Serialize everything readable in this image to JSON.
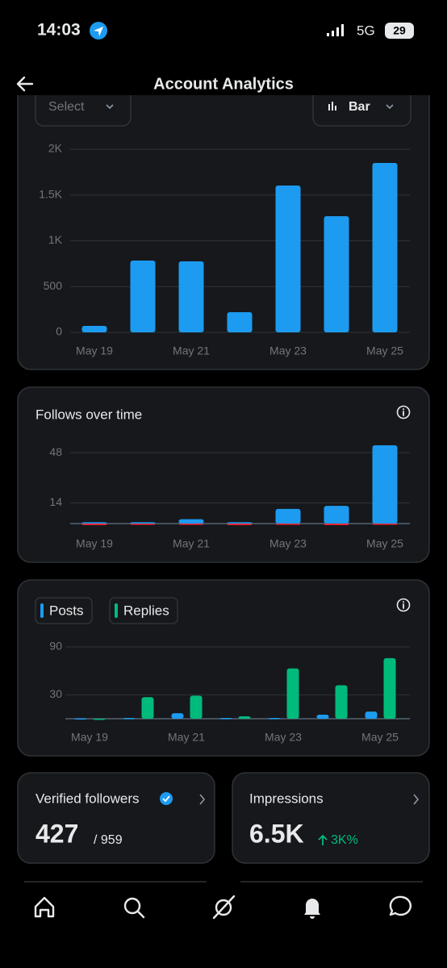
{
  "status_bar": {
    "time": "14:03",
    "network": "5G",
    "battery": "29"
  },
  "header": {
    "title": "Account Analytics"
  },
  "controls": {
    "select": "Select",
    "chart_type": "Bar"
  },
  "chart_data": [
    {
      "type": "bar",
      "categories": [
        "May 19",
        null,
        "May 21",
        null,
        "May 23",
        null,
        "May 25"
      ],
      "values": [
        70,
        784,
        775,
        220,
        1604,
        1269,
        1850
      ],
      "color": "#1d9bf0",
      "ylim": [
        0,
        2000
      ],
      "yticks": [
        0,
        500,
        {
          "value": 1000,
          "label": "1K"
        },
        {
          "value": 1500,
          "label": "1.5K"
        },
        {
          "value": 2000,
          "label": "2K"
        }
      ],
      "grid": true
    },
    {
      "type": "bar",
      "title": "Follows over time",
      "categories": [
        "May 19",
        null,
        "May 21",
        null,
        "May 23",
        null,
        "May 25"
      ],
      "series": [
        {
          "color": "#1d9bf0",
          "values": [
            1,
            1,
            3,
            1,
            10,
            12,
            53
          ]
        },
        {
          "color": "#f4212e",
          "values": [
            -1,
            0,
            0,
            -1,
            0,
            -1,
            0
          ]
        }
      ],
      "ylim": [
        -1,
        53
      ],
      "yticks": [
        14,
        48
      ],
      "grid": true
    },
    {
      "type": "bar",
      "categories": [
        "May 19",
        null,
        "May 21",
        null,
        "May 23",
        null,
        "May 25"
      ],
      "series": [
        {
          "name": "Posts",
          "color": "#1d9bf0",
          "values": [
            0.5,
            1,
            7,
            1,
            1,
            5,
            9
          ]
        },
        {
          "name": "Replies",
          "color": "#00ba7c",
          "values": [
            0,
            27,
            29,
            3,
            63,
            42,
            76
          ]
        }
      ],
      "ylim": [
        0,
        92
      ],
      "yticks": [
        30,
        90
      ],
      "grid": true
    }
  ],
  "cards": [
    {
      "title": "Verified followers",
      "value": "427",
      "total": "/ 959"
    },
    {
      "title": "Impressions",
      "value": "6.5K",
      "change": "3K%"
    }
  ]
}
